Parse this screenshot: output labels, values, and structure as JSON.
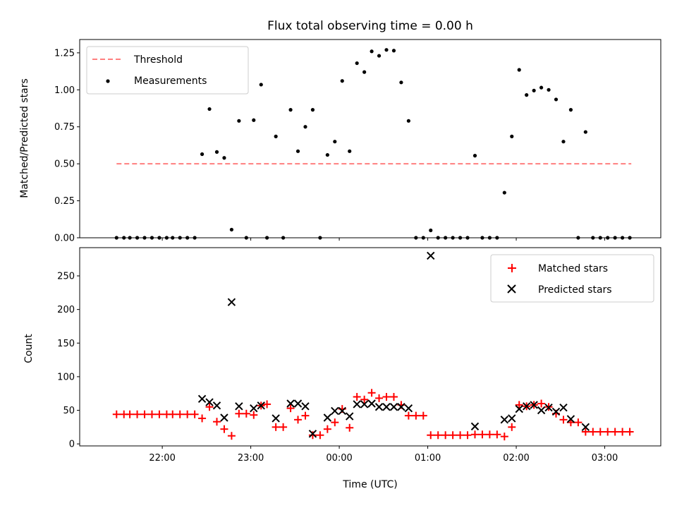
{
  "chart_data": [
    {
      "type": "scatter",
      "title": "Flux total observing time = 0.00 h",
      "xlabel": "",
      "ylabel": "Matched/Predicted stars",
      "ylim": [
        0,
        1.34
      ],
      "yticks": [
        "0.00",
        "0.25",
        "0.50",
        "0.75",
        "1.00",
        "1.25"
      ],
      "grid": false,
      "legend_position": "top-left",
      "threshold": {
        "name": "Threshold",
        "color": "#ff7f7f",
        "style": "dashed",
        "y": 0.5,
        "x_range": [
          "21:29",
          "03:18"
        ]
      },
      "series": [
        {
          "name": "Measurements",
          "color": "#000000",
          "marker": "dot",
          "points": [
            [
              "21:29",
              0
            ],
            [
              "21:34",
              0
            ],
            [
              "21:38",
              0
            ],
            [
              "21:43",
              0
            ],
            [
              "21:48",
              0
            ],
            [
              "21:53",
              0
            ],
            [
              "21:58",
              0
            ],
            [
              "22:03",
              0
            ],
            [
              "22:07",
              0
            ],
            [
              "22:12",
              0
            ],
            [
              "22:17",
              0
            ],
            [
              "22:22",
              0
            ],
            [
              "22:27",
              0.565
            ],
            [
              "22:32",
              0.87
            ],
            [
              "22:37",
              0.58
            ],
            [
              "22:42",
              0.54
            ],
            [
              "22:47",
              0.055
            ],
            [
              "22:52",
              0.79
            ],
            [
              "22:57",
              0
            ],
            [
              "23:02",
              0.795
            ],
            [
              "23:07",
              1.035
            ],
            [
              "23:11",
              0
            ],
            [
              "23:17",
              0.685
            ],
            [
              "23:22",
              0
            ],
            [
              "23:27",
              0.865
            ],
            [
              "23:32",
              0.585
            ],
            [
              "23:37",
              0.75
            ],
            [
              "23:42",
              0.865
            ],
            [
              "23:47",
              0
            ],
            [
              "23:52",
              0.56
            ],
            [
              "23:57",
              0.65
            ],
            [
              "00:02",
              1.06
            ],
            [
              "00:07",
              0.585
            ],
            [
              "00:12",
              1.18
            ],
            [
              "00:17",
              1.12
            ],
            [
              "00:22",
              1.26
            ],
            [
              "00:27",
              1.23
            ],
            [
              "00:32",
              1.27
            ],
            [
              "00:37",
              1.265
            ],
            [
              "00:42",
              1.05
            ],
            [
              "00:47",
              0.79
            ],
            [
              "00:52",
              0
            ],
            [
              "00:57",
              0
            ],
            [
              "01:02",
              0.05
            ],
            [
              "01:07",
              0
            ],
            [
              "01:12",
              0
            ],
            [
              "01:17",
              0
            ],
            [
              "01:22",
              0
            ],
            [
              "01:27",
              0
            ],
            [
              "01:32",
              0.555
            ],
            [
              "01:37",
              0
            ],
            [
              "01:42",
              0
            ],
            [
              "01:47",
              0
            ],
            [
              "01:52",
              0.305
            ],
            [
              "01:57",
              0.685
            ],
            [
              "02:02",
              1.135
            ],
            [
              "02:07",
              0.965
            ],
            [
              "02:12",
              0.995
            ],
            [
              "02:17",
              1.015
            ],
            [
              "02:22",
              1.0
            ],
            [
              "02:27",
              0.935
            ],
            [
              "02:32",
              0.65
            ],
            [
              "02:37",
              0.865
            ],
            [
              "02:42",
              0
            ],
            [
              "02:47",
              0.715
            ],
            [
              "02:52",
              0
            ],
            [
              "02:57",
              0
            ],
            [
              "03:02",
              0
            ],
            [
              "03:07",
              0
            ],
            [
              "03:12",
              0
            ],
            [
              "03:17",
              0
            ]
          ]
        }
      ]
    },
    {
      "type": "scatter",
      "title": "",
      "xlabel": "Time (UTC)",
      "ylabel": "Count",
      "xticks": [
        "22:00",
        "23:00",
        "00:00",
        "01:00",
        "02:00",
        "03:00"
      ],
      "yticks": [
        "0",
        "50",
        "100",
        "150",
        "200",
        "250"
      ],
      "ylim": [
        -3,
        292
      ],
      "grid": false,
      "legend_position": "top-right",
      "series": [
        {
          "name": "Matched stars",
          "color": "#ff0000",
          "marker": "plus",
          "points": [
            [
              "21:29",
              44
            ],
            [
              "21:34",
              44
            ],
            [
              "21:38",
              44
            ],
            [
              "21:43",
              44
            ],
            [
              "21:48",
              44
            ],
            [
              "21:53",
              44
            ],
            [
              "21:58",
              44
            ],
            [
              "22:03",
              44
            ],
            [
              "22:07",
              44
            ],
            [
              "22:12",
              44
            ],
            [
              "22:17",
              44
            ],
            [
              "22:22",
              44
            ],
            [
              "22:27",
              38
            ],
            [
              "22:32",
              55
            ],
            [
              "22:37",
              33
            ],
            [
              "22:42",
              22
            ],
            [
              "22:47",
              12
            ],
            [
              "22:52",
              45
            ],
            [
              "22:57",
              45
            ],
            [
              "23:02",
              43
            ],
            [
              "23:07",
              57
            ],
            [
              "23:11",
              59
            ],
            [
              "23:17",
              25
            ],
            [
              "23:22",
              25
            ],
            [
              "23:27",
              53
            ],
            [
              "23:32",
              36
            ],
            [
              "23:37",
              42
            ],
            [
              "23:42",
              13
            ],
            [
              "23:47",
              13
            ],
            [
              "23:52",
              22
            ],
            [
              "23:57",
              32
            ],
            [
              "00:02",
              52
            ],
            [
              "00:07",
              24
            ],
            [
              "00:12",
              70
            ],
            [
              "00:17",
              66
            ],
            [
              "00:22",
              76
            ],
            [
              "00:27",
              68
            ],
            [
              "00:32",
              70
            ],
            [
              "00:37",
              70
            ],
            [
              "00:42",
              58
            ],
            [
              "00:47",
              42
            ],
            [
              "00:52",
              42
            ],
            [
              "00:57",
              42
            ],
            [
              "01:02",
              13
            ],
            [
              "01:07",
              13
            ],
            [
              "01:12",
              13
            ],
            [
              "01:17",
              13
            ],
            [
              "01:22",
              13
            ],
            [
              "01:27",
              13
            ],
            [
              "01:32",
              14
            ],
            [
              "01:37",
              14
            ],
            [
              "01:42",
              14
            ],
            [
              "01:47",
              14
            ],
            [
              "01:52",
              11
            ],
            [
              "01:57",
              25
            ],
            [
              "02:02",
              58
            ],
            [
              "02:07",
              56
            ],
            [
              "02:12",
              58
            ],
            [
              "02:17",
              60
            ],
            [
              "02:22",
              55
            ],
            [
              "02:27",
              45
            ],
            [
              "02:32",
              36
            ],
            [
              "02:37",
              32
            ],
            [
              "02:42",
              32
            ],
            [
              "02:47",
              18
            ],
            [
              "02:52",
              18
            ],
            [
              "02:57",
              18
            ],
            [
              "03:02",
              18
            ],
            [
              "03:07",
              18
            ],
            [
              "03:12",
              18
            ],
            [
              "03:17",
              18
            ]
          ]
        },
        {
          "name": "Predicted stars",
          "color": "#000000",
          "marker": "x",
          "points": [
            [
              "22:27",
              67
            ],
            [
              "22:32",
              62
            ],
            [
              "22:37",
              57
            ],
            [
              "22:42",
              39
            ],
            [
              "22:47",
              211
            ],
            [
              "22:52",
              56
            ],
            [
              "23:02",
              53
            ],
            [
              "23:07",
              57
            ],
            [
              "23:17",
              38
            ],
            [
              "23:27",
              60
            ],
            [
              "23:32",
              60
            ],
            [
              "23:37",
              56
            ],
            [
              "23:42",
              15
            ],
            [
              "23:52",
              39
            ],
            [
              "23:57",
              49
            ],
            [
              "00:02",
              49
            ],
            [
              "00:07",
              41
            ],
            [
              "00:12",
              59
            ],
            [
              "00:17",
              59
            ],
            [
              "00:22",
              60
            ],
            [
              "00:27",
              55
            ],
            [
              "00:32",
              55
            ],
            [
              "00:37",
              55
            ],
            [
              "00:42",
              55
            ],
            [
              "00:47",
              53
            ],
            [
              "01:02",
              280
            ],
            [
              "01:32",
              26
            ],
            [
              "01:52",
              36
            ],
            [
              "01:57",
              38
            ],
            [
              "02:02",
              52
            ],
            [
              "02:07",
              56
            ],
            [
              "02:12",
              58
            ],
            [
              "02:17",
              50
            ],
            [
              "02:22",
              54
            ],
            [
              "02:27",
              48
            ],
            [
              "02:32",
              54
            ],
            [
              "02:37",
              37
            ],
            [
              "02:47",
              25
            ]
          ]
        }
      ]
    }
  ]
}
